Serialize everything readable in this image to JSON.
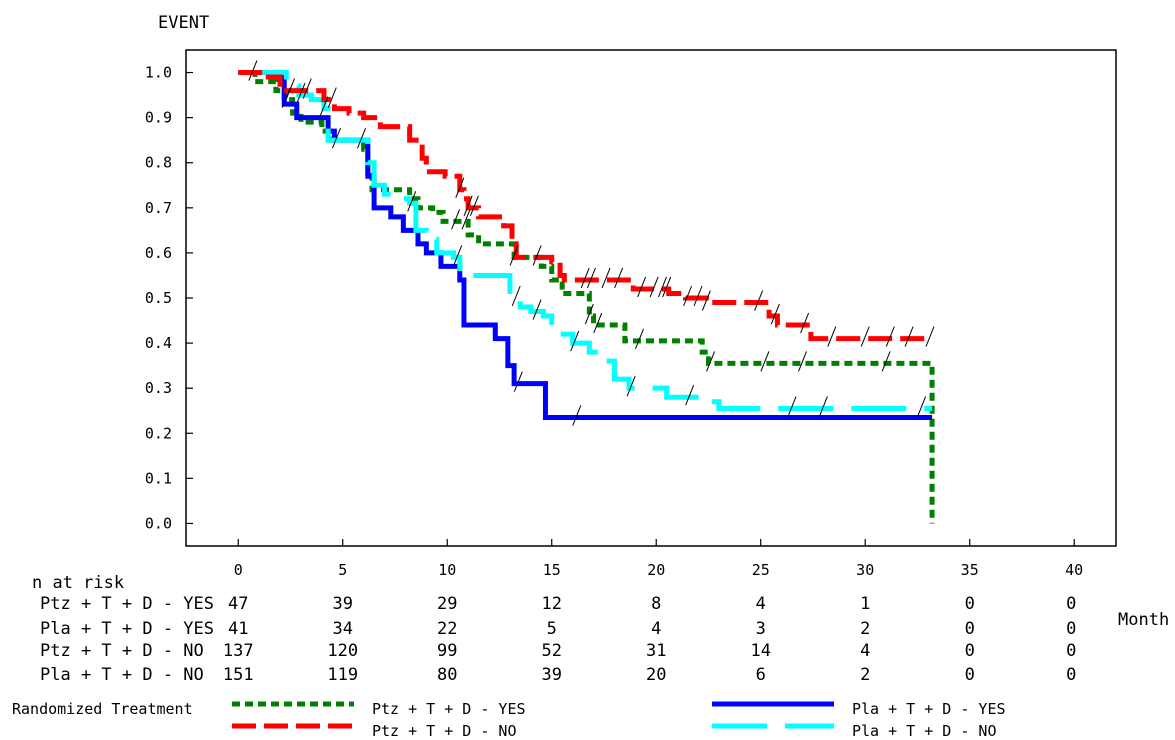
{
  "chart_data": {
    "type": "line",
    "title": "",
    "ylabel": "EVENT",
    "xlabel": "Month",
    "xlim": [
      -2.5,
      42
    ],
    "ylim": [
      -0.05,
      1.05
    ],
    "xticks": [
      "0",
      "5",
      "10",
      "15",
      "20",
      "25",
      "30",
      "35",
      "40"
    ],
    "yticks": [
      "0.0",
      "0.1",
      "0.2",
      "0.3",
      "0.4",
      "0.5",
      "0.6",
      "0.7",
      "0.8",
      "0.9",
      "1.0"
    ],
    "series": [
      {
        "name": "Ptz + T + D - YES",
        "color": "#008000",
        "style": "dotted",
        "steps": [
          [
            0,
            1.0
          ],
          [
            0.8,
            0.98
          ],
          [
            1.8,
            0.96
          ],
          [
            2.2,
            0.94
          ],
          [
            2.6,
            0.91
          ],
          [
            3.0,
            0.89
          ],
          [
            3.5,
            0.89
          ],
          [
            4.0,
            0.87
          ],
          [
            4.4,
            0.85
          ],
          [
            5.5,
            0.85
          ],
          [
            6.0,
            0.83
          ],
          [
            6.2,
            0.78
          ],
          [
            6.4,
            0.74
          ],
          [
            8.2,
            0.72
          ],
          [
            8.6,
            0.7
          ],
          [
            9.3,
            0.69
          ],
          [
            9.8,
            0.67
          ],
          [
            11.0,
            0.64
          ],
          [
            11.5,
            0.62
          ],
          [
            12.6,
            0.62
          ],
          [
            13.2,
            0.59
          ],
          [
            14.5,
            0.57
          ],
          [
            15.0,
            0.54
          ],
          [
            15.5,
            0.51
          ],
          [
            16.8,
            0.46
          ],
          [
            17.0,
            0.44
          ],
          [
            18.5,
            0.405
          ],
          [
            19.0,
            0.405
          ],
          [
            22.2,
            0.38
          ],
          [
            22.5,
            0.355
          ],
          [
            33.2,
            0.355
          ],
          [
            33.2,
            0.0
          ]
        ],
        "end": 33.2,
        "censor_x": [
          2.3,
          5.9,
          10.4,
          10.9,
          13.2,
          14.3,
          16.8,
          17.2,
          19.2,
          22.6,
          25.2,
          27.0,
          31.0
        ]
      },
      {
        "name": "Pla + T + D - YES",
        "color": "#0000ff",
        "style": "solid",
        "steps": [
          [
            0,
            1.0
          ],
          [
            1.5,
            1.0
          ],
          [
            2.2,
            0.93
          ],
          [
            2.8,
            0.9
          ],
          [
            3.9,
            0.9
          ],
          [
            4.3,
            0.87
          ],
          [
            4.6,
            0.85
          ],
          [
            6.0,
            0.85
          ],
          [
            6.2,
            0.77
          ],
          [
            6.5,
            0.7
          ],
          [
            7.3,
            0.68
          ],
          [
            7.9,
            0.65
          ],
          [
            8.6,
            0.62
          ],
          [
            9.0,
            0.6
          ],
          [
            9.7,
            0.57
          ],
          [
            10.6,
            0.54
          ],
          [
            10.8,
            0.44
          ],
          [
            12.3,
            0.41
          ],
          [
            12.9,
            0.35
          ],
          [
            13.2,
            0.31
          ],
          [
            14.7,
            0.235
          ],
          [
            33.2,
            0.235
          ]
        ],
        "end": 33.2,
        "censor_x": [
          4.7,
          13.4,
          16.2
        ]
      },
      {
        "name": "Ptz + T + D - NO",
        "color": "#ff0000",
        "style": "dashed",
        "steps": [
          [
            0,
            1.0
          ],
          [
            1.2,
            0.99
          ],
          [
            2.0,
            0.96
          ],
          [
            4.1,
            0.94
          ],
          [
            4.6,
            0.92
          ],
          [
            5.3,
            0.91
          ],
          [
            6.0,
            0.9
          ],
          [
            6.8,
            0.88
          ],
          [
            8.2,
            0.85
          ],
          [
            8.8,
            0.81
          ],
          [
            9.0,
            0.78
          ],
          [
            9.9,
            0.77
          ],
          [
            10.6,
            0.74
          ],
          [
            10.8,
            0.72
          ],
          [
            11.0,
            0.7
          ],
          [
            11.5,
            0.68
          ],
          [
            12.7,
            0.66
          ],
          [
            13.1,
            0.62
          ],
          [
            13.3,
            0.59
          ],
          [
            15.0,
            0.58
          ],
          [
            15.4,
            0.55
          ],
          [
            15.6,
            0.54
          ],
          [
            18.9,
            0.52
          ],
          [
            20.6,
            0.51
          ],
          [
            21.4,
            0.5
          ],
          [
            22.4,
            0.49
          ],
          [
            23.7,
            0.49
          ],
          [
            25.4,
            0.46
          ],
          [
            25.8,
            0.44
          ],
          [
            27.4,
            0.41
          ],
          [
            33.2,
            0.41
          ]
        ],
        "end": 33.2,
        "censor_x": [
          0.7,
          2.5,
          3.3,
          4.5,
          10.6,
          11.0,
          11.3,
          16.6,
          16.9,
          17.6,
          18.2,
          19.3,
          19.9,
          20.3,
          20.5,
          21.5,
          22.0,
          22.4,
          24.9,
          25.7,
          27.1,
          28.4,
          30.0,
          31.2,
          32.1,
          33.1
        ]
      },
      {
        "name": "Pla + T + D - NO",
        "color": "#00ffff",
        "style": "longdash",
        "steps": [
          [
            0,
            1.0
          ],
          [
            1.7,
            1.0
          ],
          [
            2.3,
            0.97
          ],
          [
            2.9,
            0.95
          ],
          [
            3.5,
            0.94
          ],
          [
            4.1,
            0.92
          ],
          [
            4.3,
            0.85
          ],
          [
            6.0,
            0.85
          ],
          [
            6.2,
            0.8
          ],
          [
            6.5,
            0.75
          ],
          [
            7.0,
            0.73
          ],
          [
            7.4,
            0.72
          ],
          [
            8.2,
            0.71
          ],
          [
            8.5,
            0.65
          ],
          [
            9.0,
            0.63
          ],
          [
            9.5,
            0.6
          ],
          [
            10.3,
            0.59
          ],
          [
            10.6,
            0.55
          ],
          [
            12.4,
            0.55
          ],
          [
            13.0,
            0.5
          ],
          [
            13.5,
            0.48
          ],
          [
            14.0,
            0.47
          ],
          [
            14.6,
            0.46
          ],
          [
            15.0,
            0.42
          ],
          [
            16.0,
            0.4
          ],
          [
            16.8,
            0.38
          ],
          [
            17.4,
            0.36
          ],
          [
            18.0,
            0.32
          ],
          [
            18.7,
            0.3
          ],
          [
            20.5,
            0.28
          ],
          [
            22.3,
            0.27
          ],
          [
            23.0,
            0.255
          ],
          [
            33.2,
            0.255
          ]
        ],
        "end": 33.2,
        "censor_x": [
          3.0,
          4.1,
          8.3,
          10.5,
          13.3,
          14.3,
          16.1,
          18.8,
          21.6,
          26.5,
          28.0,
          32.7
        ]
      }
    ],
    "risk_table": {
      "title": "n at risk",
      "rows": [
        {
          "label": "Ptz + T + D - YES",
          "counts": [
            "47",
            "39",
            "29",
            "12",
            "8",
            "4",
            "1",
            "0",
            "0"
          ]
        },
        {
          "label": "Pla + T + D - YES",
          "counts": [
            "41",
            "34",
            "22",
            "5",
            "4",
            "3",
            "2",
            "0",
            "0"
          ]
        },
        {
          "label": "Ptz + T + D - NO",
          "counts": [
            "137",
            "120",
            "99",
            "52",
            "31",
            "14",
            "4",
            "0",
            "0"
          ]
        },
        {
          "label": "Pla + T + D - NO",
          "counts": [
            "151",
            "119",
            "80",
            "39",
            "20",
            "6",
            "2",
            "0",
            "0"
          ]
        }
      ]
    },
    "legend": {
      "title": "Randomized Treatment",
      "placement": "bottom"
    }
  }
}
